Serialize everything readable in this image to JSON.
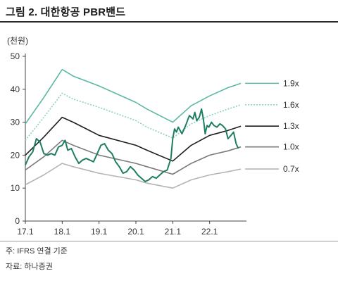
{
  "figure_title": "그림 2. 대한항공 PBR밴드",
  "footnote": "주: IFRS 연결 기준",
  "source": "자료: 하나증권",
  "chart_data": {
    "type": "line",
    "unit_label": "(천원)",
    "x_ticks": [
      "17.1",
      "18.1",
      "19.1",
      "20.1",
      "21.1",
      "22.1"
    ],
    "x_range": [
      2017.0,
      2023.0
    ],
    "ylim": [
      0,
      50
    ],
    "y_ticks": [
      0,
      10,
      20,
      30,
      40,
      50
    ],
    "grid": false,
    "legend": "right-inline",
    "series": [
      {
        "name": "1.9x",
        "color": "#5cb8a6",
        "dash": "",
        "points": [
          [
            2017.0,
            29.5
          ],
          [
            2017.5,
            37.5
          ],
          [
            2018.0,
            46.0
          ],
          [
            2018.3,
            44.0
          ],
          [
            2019.0,
            41.0
          ],
          [
            2020.0,
            36.0
          ],
          [
            2020.3,
            34.0
          ],
          [
            2021.0,
            30.0
          ],
          [
            2021.5,
            35.0
          ],
          [
            2022.0,
            38.0
          ],
          [
            2022.5,
            40.5
          ],
          [
            2022.85,
            41.8
          ]
        ]
      },
      {
        "name": "1.6x",
        "color": "#8ed1bf",
        "dash": "2,2",
        "points": [
          [
            2017.0,
            24.5
          ],
          [
            2017.5,
            31.5
          ],
          [
            2018.0,
            38.8
          ],
          [
            2018.3,
            37.0
          ],
          [
            2019.0,
            34.5
          ],
          [
            2020.0,
            30.5
          ],
          [
            2020.3,
            28.5
          ],
          [
            2021.0,
            25.2
          ],
          [
            2021.5,
            29.5
          ],
          [
            2022.0,
            32.0
          ],
          [
            2022.5,
            34.0
          ],
          [
            2022.85,
            35.3
          ]
        ]
      },
      {
        "name": "1.3x",
        "color": "#1f1f1f",
        "dash": "",
        "points": [
          [
            2017.0,
            20.0
          ],
          [
            2017.5,
            25.5
          ],
          [
            2018.0,
            31.5
          ],
          [
            2018.3,
            30.0
          ],
          [
            2019.0,
            26.0
          ],
          [
            2020.0,
            23.0
          ],
          [
            2020.3,
            21.5
          ],
          [
            2021.0,
            18.2
          ],
          [
            2021.5,
            23.0
          ],
          [
            2022.0,
            26.0
          ],
          [
            2022.5,
            27.5
          ],
          [
            2022.85,
            28.8
          ]
        ]
      },
      {
        "name": "1.0x",
        "color": "#7a7a7a",
        "dash": "",
        "points": [
          [
            2017.0,
            15.5
          ],
          [
            2017.5,
            19.5
          ],
          [
            2018.0,
            24.5
          ],
          [
            2018.3,
            23.0
          ],
          [
            2019.0,
            20.0
          ],
          [
            2020.0,
            17.5
          ],
          [
            2020.3,
            16.5
          ],
          [
            2021.0,
            14.2
          ],
          [
            2021.5,
            17.5
          ],
          [
            2022.0,
            20.0
          ],
          [
            2022.5,
            21.3
          ],
          [
            2022.85,
            22.5
          ]
        ]
      },
      {
        "name": "0.7x",
        "color": "#b4b4b4",
        "dash": "",
        "points": [
          [
            2017.0,
            11.0
          ],
          [
            2017.5,
            14.0
          ],
          [
            2018.0,
            17.5
          ],
          [
            2018.3,
            16.5
          ],
          [
            2019.0,
            14.5
          ],
          [
            2020.0,
            12.5
          ],
          [
            2020.3,
            11.5
          ],
          [
            2021.0,
            10.0
          ],
          [
            2021.5,
            12.5
          ],
          [
            2022.0,
            14.0
          ],
          [
            2022.5,
            15.0
          ],
          [
            2022.85,
            15.8
          ]
        ]
      },
      {
        "name": "",
        "color": "#1e7d63",
        "dash": "",
        "is_price": true,
        "points": [
          [
            2017.0,
            17.0
          ],
          [
            2017.1,
            19.5
          ],
          [
            2017.2,
            21.0
          ],
          [
            2017.3,
            25.0
          ],
          [
            2017.4,
            24.0
          ],
          [
            2017.5,
            20.5
          ],
          [
            2017.6,
            20.0
          ],
          [
            2017.7,
            20.5
          ],
          [
            2017.8,
            20.0
          ],
          [
            2017.9,
            22.5
          ],
          [
            2018.0,
            23.0
          ],
          [
            2018.08,
            24.5
          ],
          [
            2018.15,
            21.5
          ],
          [
            2018.25,
            22.0
          ],
          [
            2018.35,
            19.5
          ],
          [
            2018.45,
            17.5
          ],
          [
            2018.55,
            18.5
          ],
          [
            2018.65,
            19.0
          ],
          [
            2018.75,
            18.5
          ],
          [
            2018.85,
            18.0
          ],
          [
            2018.95,
            20.5
          ],
          [
            2019.05,
            23.0
          ],
          [
            2019.15,
            23.5
          ],
          [
            2019.25,
            21.5
          ],
          [
            2019.35,
            20.5
          ],
          [
            2019.45,
            18.0
          ],
          [
            2019.55,
            16.5
          ],
          [
            2019.65,
            14.5
          ],
          [
            2019.75,
            15.0
          ],
          [
            2019.85,
            16.5
          ],
          [
            2019.95,
            15.5
          ],
          [
            2020.05,
            14.0
          ],
          [
            2020.15,
            13.0
          ],
          [
            2020.25,
            12.0
          ],
          [
            2020.35,
            12.5
          ],
          [
            2020.45,
            13.5
          ],
          [
            2020.55,
            13.0
          ],
          [
            2020.65,
            14.0
          ],
          [
            2020.75,
            15.0
          ],
          [
            2020.85,
            15.5
          ],
          [
            2020.95,
            19.0
          ],
          [
            2021.0,
            25.0
          ],
          [
            2021.05,
            28.0
          ],
          [
            2021.1,
            27.0
          ],
          [
            2021.15,
            28.5
          ],
          [
            2021.25,
            26.5
          ],
          [
            2021.35,
            29.0
          ],
          [
            2021.45,
            32.0
          ],
          [
            2021.55,
            31.0
          ],
          [
            2021.6,
            33.0
          ],
          [
            2021.65,
            30.5
          ],
          [
            2021.72,
            31.5
          ],
          [
            2021.78,
            34.0
          ],
          [
            2021.83,
            31.0
          ],
          [
            2021.88,
            26.5
          ],
          [
            2021.93,
            29.0
          ],
          [
            2021.98,
            28.5
          ],
          [
            2022.05,
            30.0
          ],
          [
            2022.12,
            29.0
          ],
          [
            2022.2,
            28.5
          ],
          [
            2022.28,
            29.5
          ],
          [
            2022.35,
            29.0
          ],
          [
            2022.43,
            28.0
          ],
          [
            2022.5,
            25.0
          ],
          [
            2022.58,
            26.0
          ],
          [
            2022.65,
            27.0
          ],
          [
            2022.72,
            23.5
          ],
          [
            2022.78,
            22.0
          ]
        ]
      }
    ]
  }
}
